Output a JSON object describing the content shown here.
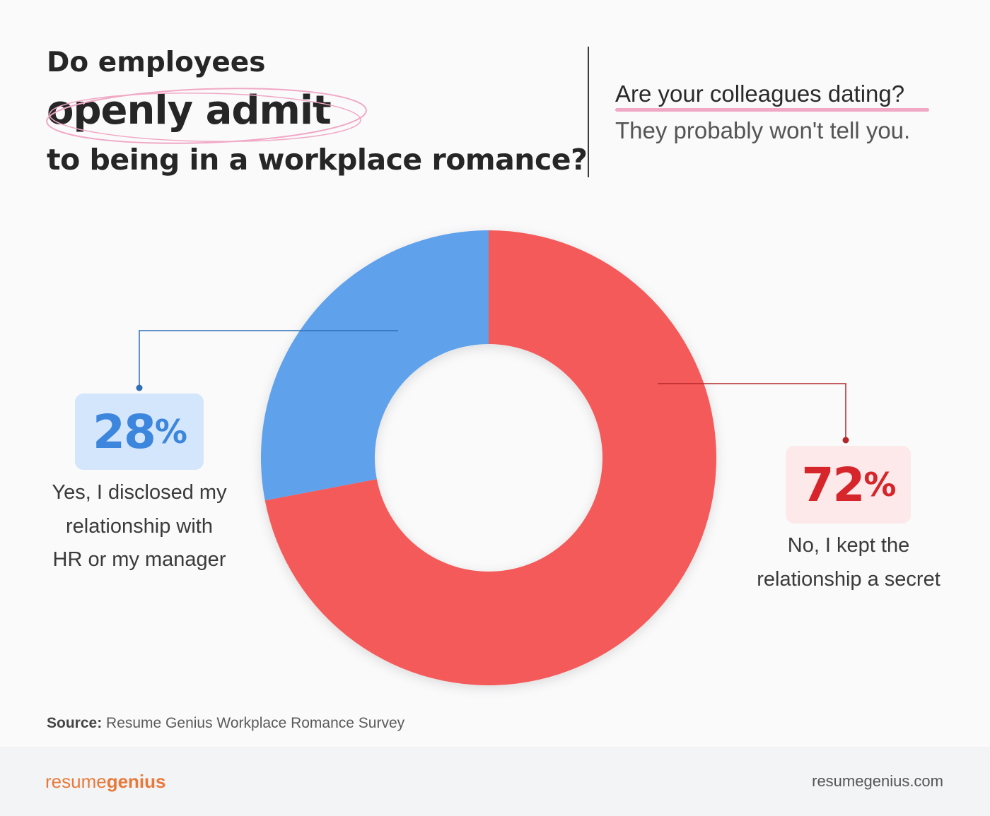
{
  "header": {
    "title_line1": "Do employees",
    "title_line2": "openly admit",
    "title_line3": "to being in a workplace romance?",
    "subtitle_line1": "Are your colleagues dating?",
    "subtitle_line2": "They probably won't tell you."
  },
  "chart_data": {
    "type": "pie",
    "donut": true,
    "slices": [
      {
        "label": "No, I kept the relationship a secret",
        "value": 72,
        "color": "#f55a5a",
        "value_text": "72",
        "unit": "%"
      },
      {
        "label": "Yes, I disclosed my relationship with HR or my manager",
        "value": 28,
        "color": "#5fa1eb",
        "value_text": "28",
        "unit": "%"
      }
    ]
  },
  "callouts": {
    "yes": {
      "value": "28",
      "unit": "%",
      "line1": "Yes, I disclosed my",
      "line2": "relationship with",
      "line3": "HR or my manager",
      "color": "#3c86de"
    },
    "no": {
      "value": "72",
      "unit": "%",
      "line1": "No, I kept the",
      "line2": "relationship a secret",
      "color": "#d6252b"
    }
  },
  "source": {
    "label": "Source:",
    "text": "Resume Genius Workplace Romance Survey"
  },
  "footer": {
    "brand_light": "resume",
    "brand_bold": "genius",
    "website": "resumegenius.com"
  },
  "colors": {
    "accent_pink": "#f0a8c4",
    "footer_brand": "#e8793a"
  }
}
